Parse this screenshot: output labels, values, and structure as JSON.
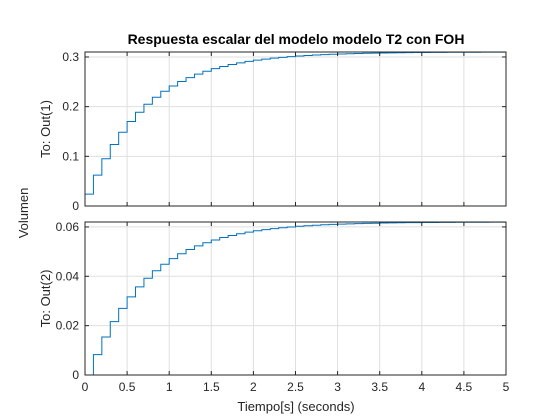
{
  "chart_data": {
    "type": "line",
    "title": "Respuesta escalar del modelo modelo T2 con FOH",
    "xlabel": "Tiempo[s] (seconds)",
    "ylabel": "Volumen",
    "line_color": "#0072BD",
    "grid": true,
    "subplots": [
      {
        "ylabel": "To: Out(1)",
        "xlim": [
          0,
          5
        ],
        "ylim": [
          0,
          0.31
        ],
        "xticks": [
          "0",
          "0.5",
          "1",
          "1.5",
          "2",
          "2.5",
          "3",
          "3.5",
          "4",
          "4.5",
          "5"
        ],
        "yticks": [
          "0",
          "0.1",
          "0.2",
          "0.3"
        ],
        "step_period": 0.1,
        "start": {
          "x": 0,
          "y": 0.024
        },
        "final_value": 0.31,
        "time_constant": 0.7,
        "show_xticks": false
      },
      {
        "ylabel": "To: Out(2)",
        "xlim": [
          0,
          5
        ],
        "ylim": [
          0,
          0.062
        ],
        "xticks": [
          "0",
          "0.5",
          "1",
          "1.5",
          "2",
          "2.5",
          "3",
          "3.5",
          "4",
          "4.5",
          "5"
        ],
        "yticks": [
          "0",
          "0.02",
          "0.04",
          "0.06"
        ],
        "step_period": 0.1,
        "start": {
          "x": 0,
          "y": 0.0
        },
        "final_value": 0.062,
        "time_constant": 0.7,
        "show_xticks": true
      }
    ]
  }
}
